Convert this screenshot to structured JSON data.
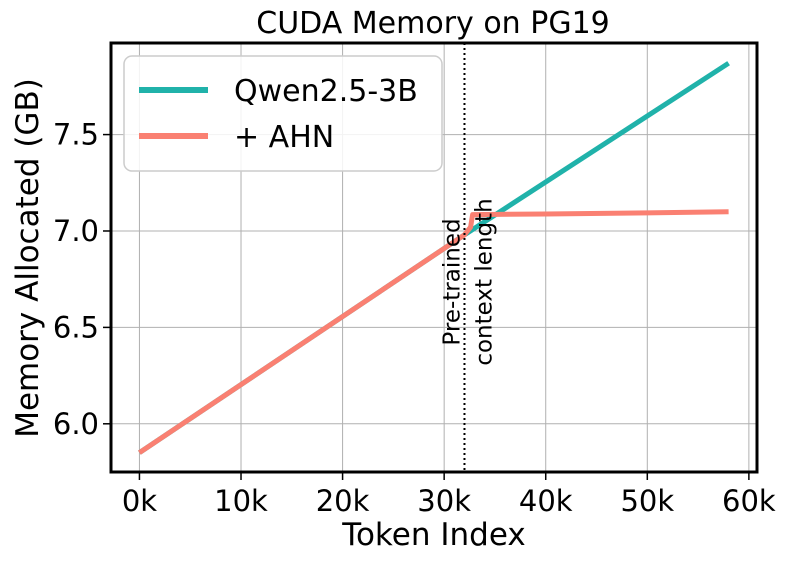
{
  "chart_data": {
    "type": "line",
    "title": "CUDA Memory on PG19",
    "xlabel": "Token Index",
    "ylabel": "Memory Allocated (GB)",
    "xlim": [
      -2800,
      60800
    ],
    "ylim": [
      5.75,
      7.975
    ],
    "xticks": [
      0,
      10000,
      20000,
      30000,
      40000,
      50000,
      60000
    ],
    "xtick_labels": [
      "0k",
      "10k",
      "20k",
      "30k",
      "40k",
      "50k",
      "60k"
    ],
    "yticks": [
      6.0,
      6.5,
      7.0,
      7.5
    ],
    "ytick_labels": [
      "6.0",
      "6.5",
      "7.0",
      "7.5"
    ],
    "grid": true,
    "legend_position": "top-left",
    "series": [
      {
        "name": "Qwen2.5-3B",
        "color": "#20b2aa",
        "points": [
          [
            0,
            5.85
          ],
          [
            32000,
            6.98
          ],
          [
            58000,
            7.87
          ]
        ]
      },
      {
        "name": "+ AHN",
        "color": "#fa8072",
        "points": [
          [
            0,
            5.85
          ],
          [
            32000,
            6.98
          ],
          [
            32600,
            7.02
          ],
          [
            32800,
            7.085
          ],
          [
            40000,
            7.088
          ],
          [
            50000,
            7.094
          ],
          [
            58000,
            7.1
          ]
        ]
      }
    ],
    "annotations": [
      {
        "type": "vline",
        "x": 32000,
        "style": "dotted",
        "text_lines": [
          "Pre-trained",
          "context length"
        ]
      }
    ]
  }
}
